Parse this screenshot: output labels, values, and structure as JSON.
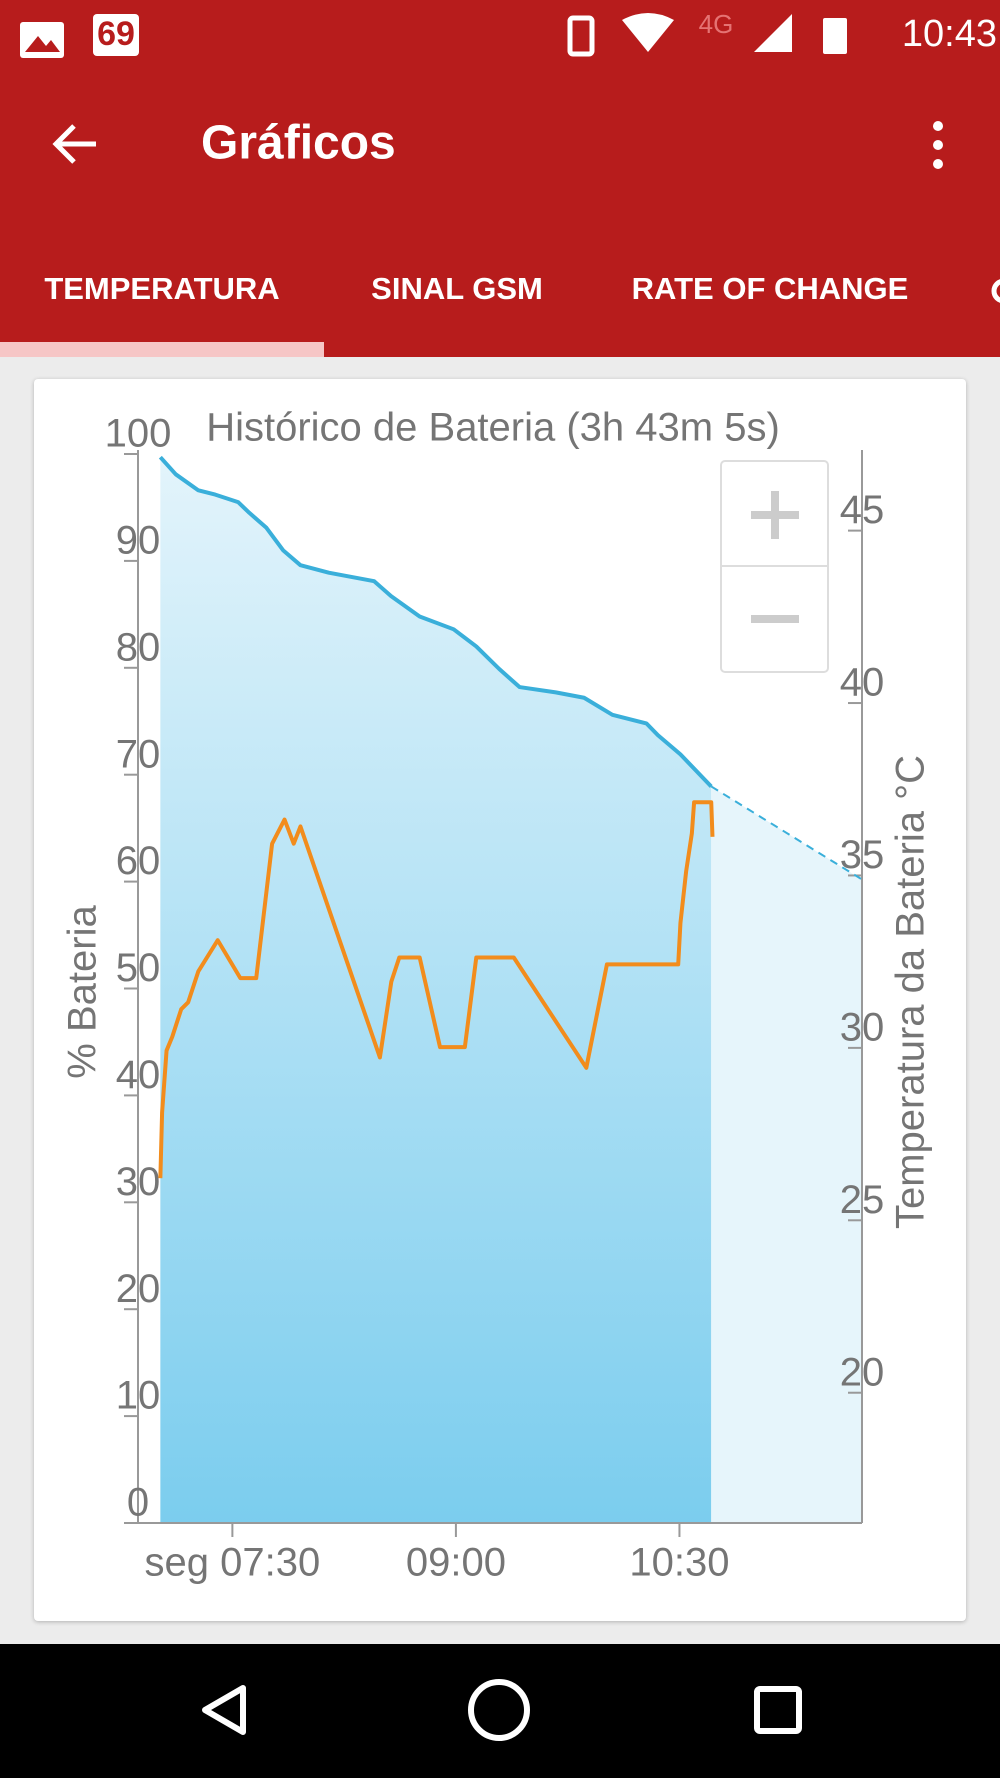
{
  "status_bar": {
    "notification": "69",
    "network": "4G",
    "time": "10:43"
  },
  "app_bar": {
    "title": "Gráficos"
  },
  "tabs": [
    "TEMPERATURA",
    "SINAL GSM",
    "RATE OF CHANGE"
  ],
  "chart_data": {
    "type": "line",
    "title": "Histórico de Bateria (3h 43m 5s)",
    "y_label": "% Bateria",
    "y2_label": "Temperatura da Bateria °C",
    "xlim": [
      412,
      703.5
    ],
    "xticks": [
      {
        "value": 450,
        "label": "seg 07:30"
      },
      {
        "value": 540,
        "label": "09:00"
      },
      {
        "value": 630,
        "label": "10:30"
      }
    ],
    "ylim": [
      0,
      100
    ],
    "yticks": [
      0,
      10,
      20,
      30,
      40,
      50,
      60,
      70,
      80,
      90,
      100
    ],
    "y2lim": [
      15.7,
      46.7
    ],
    "y2ticks": [
      20,
      25,
      30,
      35,
      40,
      45
    ],
    "series": [
      {
        "color": "#3aafda",
        "area": true,
        "x": [
          421,
          427.2,
          436.3,
          443.1,
          452.3,
          456.8,
          463.7,
          470.4,
          477.4,
          488.8,
          507.1,
          513.9,
          525.4,
          539.1,
          548.2,
          557.4,
          565.6,
          580.2,
          591.6,
          603.0,
          616.7,
          621.3,
          630.4,
          642.8
        ],
        "values": [
          99.7,
          98.1,
          96.6,
          96.2,
          95.5,
          94.5,
          93.1,
          91.0,
          89.6,
          88.9,
          88.1,
          86.7,
          84.8,
          83.6,
          82.0,
          79.9,
          78.2,
          77.7,
          77.2,
          75.6,
          74.8,
          73.7,
          71.9,
          68.9
        ]
      },
      {
        "color": "#3aafda",
        "area": true,
        "dashed": true,
        "x": [
          642.8,
          703.5
        ],
        "values": [
          68.9,
          60.2
        ]
      },
      {
        "color": "#f28c1c",
        "axis": "y2",
        "x": [
          421,
          421.7,
          423.5,
          425.8,
          429.4,
          432.2,
          436.3,
          444.1,
          453.2,
          459.6,
          466.0,
          471.0,
          474.7,
          477.4,
          509.4,
          514.0,
          517.2,
          525.4,
          533.6,
          543.6,
          548.2,
          563.3,
          592.5,
          600.8,
          629.5,
          630.4,
          632.7,
          635.0,
          635.9,
          642.8,
          643.3
        ],
        "values": [
          25.7,
          27.6,
          29.4,
          29.8,
          30.6,
          30.8,
          31.7,
          32.6,
          31.5,
          31.5,
          35.4,
          36.1,
          35.4,
          35.9,
          29.2,
          31.4,
          32.1,
          32.1,
          29.5,
          29.5,
          32.1,
          32.1,
          28.9,
          31.9,
          31.9,
          33.1,
          34.6,
          35.7,
          36.6,
          36.6,
          35.6
        ]
      }
    ]
  }
}
